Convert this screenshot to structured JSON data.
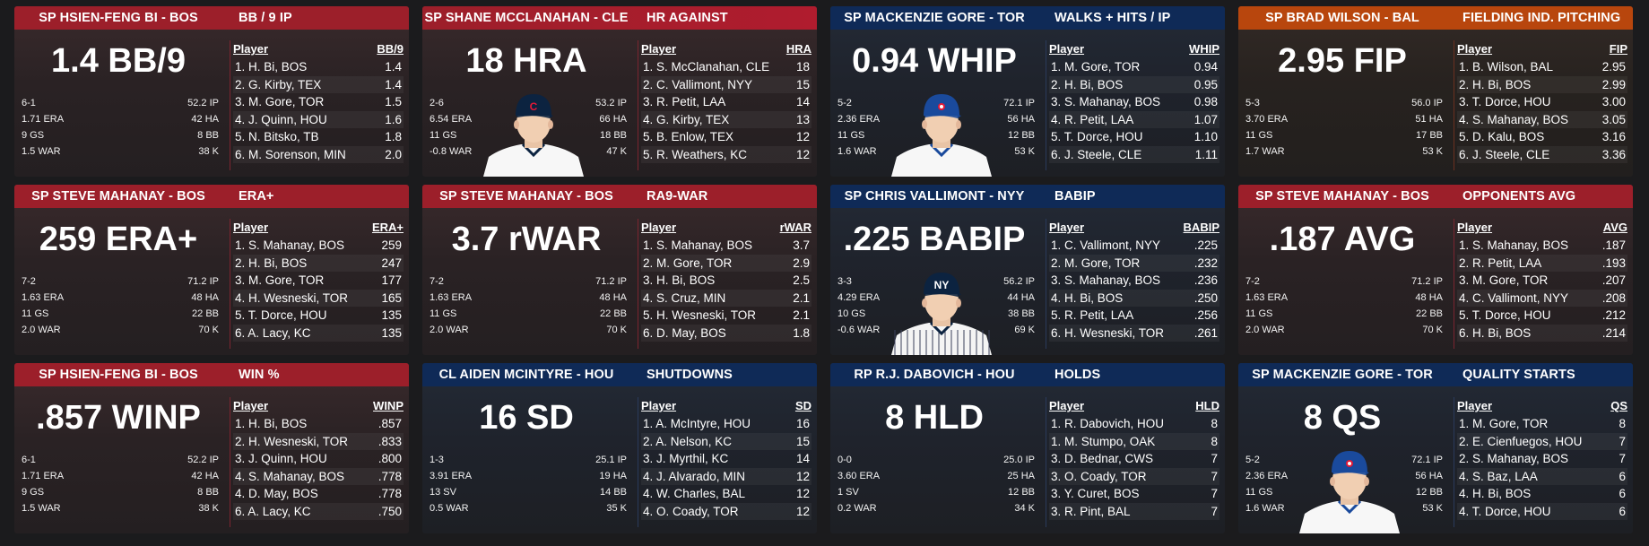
{
  "cards": [
    {
      "theme": "red",
      "pitcher": "SP HSIEN-FENG BI - BOS",
      "category": "BB / 9 IP",
      "big_stat": "1.4 BB/9",
      "avatar": false,
      "stats": [
        [
          "6-1",
          "52.2 IP"
        ],
        [
          "1.71 ERA",
          "42 HA"
        ],
        [
          "9 GS",
          "8 BB"
        ],
        [
          "1.5 WAR",
          "38 K"
        ]
      ],
      "leaderboard": {
        "player_header": "Player",
        "stat_header": "BB/9",
        "rows": [
          [
            "1. H. Bi, BOS",
            "1.4"
          ],
          [
            "2. G. Kirby, TEX",
            "1.4"
          ],
          [
            "3. M. Gore, TOR",
            "1.5"
          ],
          [
            "4. J. Quinn, HOU",
            "1.6"
          ],
          [
            "5. N. Bitsko, TB",
            "1.8"
          ],
          [
            "6. M. Sorenson, MIN",
            "2.0"
          ]
        ]
      }
    },
    {
      "theme": "red",
      "pitcher": "SP SHANE MCCLANAHAN - CLE",
      "category": "HR AGAINST",
      "big_stat": "18 HRA",
      "avatar": true,
      "cap_color": "#0c2340",
      "cap_letter": "C",
      "cap_letter_color": "#e31937",
      "stats": [
        [
          "2-6",
          "53.2 IP"
        ],
        [
          "6.54 ERA",
          "66 HA"
        ],
        [
          "11 GS",
          "18 BB"
        ],
        [
          "-0.8 WAR",
          "47 K"
        ]
      ],
      "leaderboard": {
        "player_header": "Player",
        "stat_header": "HRA",
        "rows": [
          [
            "1. S. McClanahan, CLE",
            "18"
          ],
          [
            "2. C. Vallimont, NYY",
            "15"
          ],
          [
            "3. R. Petit, LAA",
            "14"
          ],
          [
            "4. G. Kirby, TEX",
            "13"
          ],
          [
            "5. B. Enlow, TEX",
            "12"
          ],
          [
            "5. R. Weathers, KC",
            "12"
          ]
        ]
      }
    },
    {
      "theme": "blue",
      "pitcher": "SP MACKENZIE GORE - TOR",
      "category": "WALKS + HITS / IP",
      "big_stat": "0.94 WHIP",
      "avatar": true,
      "cap_color": "#1a4a9c",
      "cap_letter": "",
      "cap_letter_color": "#fff",
      "stats": [
        [
          "5-2",
          "72.1 IP"
        ],
        [
          "2.36 ERA",
          "56 HA"
        ],
        [
          "11 GS",
          "12 BB"
        ],
        [
          "1.6 WAR",
          "53 K"
        ]
      ],
      "leaderboard": {
        "player_header": "Player",
        "stat_header": "WHIP",
        "rows": [
          [
            "1. M. Gore, TOR",
            "0.94"
          ],
          [
            "2. H. Bi, BOS",
            "0.95"
          ],
          [
            "3. S. Mahanay, BOS",
            "0.98"
          ],
          [
            "4. R. Petit, LAA",
            "1.07"
          ],
          [
            "5. T. Dorce, HOU",
            "1.10"
          ],
          [
            "6. J. Steele, CLE",
            "1.11"
          ]
        ]
      }
    },
    {
      "theme": "orange",
      "pitcher": "SP BRAD WILSON - BAL",
      "category": "FIELDING IND. PITCHING",
      "big_stat": "2.95 FIP",
      "avatar": false,
      "stats": [
        [
          "5-3",
          "56.0 IP"
        ],
        [
          "3.70 ERA",
          "51 HA"
        ],
        [
          "11 GS",
          "17 BB"
        ],
        [
          "1.7 WAR",
          "53 K"
        ]
      ],
      "leaderboard": {
        "player_header": "Player",
        "stat_header": "FIP",
        "rows": [
          [
            "1. B. Wilson, BAL",
            "2.95"
          ],
          [
            "2. H. Bi, BOS",
            "2.99"
          ],
          [
            "3. T. Dorce, HOU",
            "3.00"
          ],
          [
            "4. S. Mahanay, BOS",
            "3.05"
          ],
          [
            "5. D. Kalu, BOS",
            "3.16"
          ],
          [
            "6. J. Steele, CLE",
            "3.36"
          ]
        ]
      }
    },
    {
      "theme": "red",
      "pitcher": "SP STEVE MAHANAY - BOS",
      "category": "ERA+",
      "big_stat": "259 ERA+",
      "avatar": false,
      "stats": [
        [
          "7-2",
          "71.2 IP"
        ],
        [
          "1.63 ERA",
          "48 HA"
        ],
        [
          "11 GS",
          "22 BB"
        ],
        [
          "2.0 WAR",
          "70 K"
        ]
      ],
      "leaderboard": {
        "player_header": "Player",
        "stat_header": "ERA+",
        "rows": [
          [
            "1. S. Mahanay, BOS",
            "259"
          ],
          [
            "2. H. Bi, BOS",
            "247"
          ],
          [
            "3. M. Gore, TOR",
            "177"
          ],
          [
            "4. H. Wesneski, TOR",
            "165"
          ],
          [
            "5. T. Dorce, HOU",
            "135"
          ],
          [
            "6. A. Lacy, KC",
            "135"
          ]
        ]
      }
    },
    {
      "theme": "red",
      "pitcher": "SP STEVE MAHANAY - BOS",
      "category": "RA9-WAR",
      "big_stat": "3.7 rWAR",
      "avatar": false,
      "stats": [
        [
          "7-2",
          "71.2 IP"
        ],
        [
          "1.63 ERA",
          "48 HA"
        ],
        [
          "11 GS",
          "22 BB"
        ],
        [
          "2.0 WAR",
          "70 K"
        ]
      ],
      "leaderboard": {
        "player_header": "Player",
        "stat_header": "rWAR",
        "rows": [
          [
            "1. S. Mahanay, BOS",
            "3.7"
          ],
          [
            "2. M. Gore, TOR",
            "2.9"
          ],
          [
            "3. H. Bi, BOS",
            "2.5"
          ],
          [
            "4. S. Cruz, MIN",
            "2.1"
          ],
          [
            "5. H. Wesneski, TOR",
            "2.1"
          ],
          [
            "6. D. May, BOS",
            "1.8"
          ]
        ]
      }
    },
    {
      "theme": "blue",
      "pitcher": "SP CHRIS VALLIMONT - NYY",
      "category": "BABIP",
      "big_stat": ".225 BABIP",
      "avatar": true,
      "cap_color": "#0c2340",
      "cap_letter": "NY",
      "cap_letter_color": "#fff",
      "pinstripe": true,
      "stats": [
        [
          "3-3",
          "56.2 IP"
        ],
        [
          "4.29 ERA",
          "44 HA"
        ],
        [
          "10 GS",
          "38 BB"
        ],
        [
          "-0.6 WAR",
          "69 K"
        ]
      ],
      "leaderboard": {
        "player_header": "Player",
        "stat_header": "BABIP",
        "rows": [
          [
            "1. C. Vallimont, NYY",
            ".225"
          ],
          [
            "2. M. Gore, TOR",
            ".232"
          ],
          [
            "3. S. Mahanay, BOS",
            ".236"
          ],
          [
            "4. H. Bi, BOS",
            ".250"
          ],
          [
            "5. R. Petit, LAA",
            ".256"
          ],
          [
            "6. H. Wesneski, TOR",
            ".261"
          ]
        ]
      }
    },
    {
      "theme": "red",
      "pitcher": "SP STEVE MAHANAY - BOS",
      "category": "OPPONENTS AVG",
      "big_stat": ".187 AVG",
      "avatar": false,
      "stats": [
        [
          "7-2",
          "71.2 IP"
        ],
        [
          "1.63 ERA",
          "48 HA"
        ],
        [
          "11 GS",
          "22 BB"
        ],
        [
          "2.0 WAR",
          "70 K"
        ]
      ],
      "leaderboard": {
        "player_header": "Player",
        "stat_header": "AVG",
        "rows": [
          [
            "1. S. Mahanay, BOS",
            ".187"
          ],
          [
            "2. R. Petit, LAA",
            ".193"
          ],
          [
            "3. M. Gore, TOR",
            ".207"
          ],
          [
            "4. C. Vallimont, NYY",
            ".208"
          ],
          [
            "5. T. Dorce, HOU",
            ".212"
          ],
          [
            "6. H. Bi, BOS",
            ".214"
          ]
        ]
      }
    },
    {
      "theme": "red",
      "pitcher": "SP HSIEN-FENG BI - BOS",
      "category": "WIN %",
      "big_stat": ".857 WINP",
      "avatar": false,
      "stats": [
        [
          "6-1",
          "52.2 IP"
        ],
        [
          "1.71 ERA",
          "42 HA"
        ],
        [
          "9 GS",
          "8 BB"
        ],
        [
          "1.5 WAR",
          "38 K"
        ]
      ],
      "leaderboard": {
        "player_header": "Player",
        "stat_header": "WINP",
        "rows": [
          [
            "1. H. Bi, BOS",
            ".857"
          ],
          [
            "2. H. Wesneski, TOR",
            ".833"
          ],
          [
            "3. J. Quinn, HOU",
            ".800"
          ],
          [
            "4. S. Mahanay, BOS",
            ".778"
          ],
          [
            "4. D. May, BOS",
            ".778"
          ],
          [
            "6. A. Lacy, KC",
            ".750"
          ]
        ]
      }
    },
    {
      "theme": "blue",
      "pitcher": "CL AIDEN MCINTYRE - HOU",
      "category": "SHUTDOWNS",
      "big_stat": "16 SD",
      "avatar": false,
      "stats": [
        [
          "1-3",
          "25.1 IP"
        ],
        [
          "3.91 ERA",
          "19 HA"
        ],
        [
          "13 SV",
          "14 BB"
        ],
        [
          "0.5 WAR",
          "35 K"
        ]
      ],
      "leaderboard": {
        "player_header": "Player",
        "stat_header": "SD",
        "rows": [
          [
            "1. A. McIntyre, HOU",
            "16"
          ],
          [
            "2. A. Nelson, KC",
            "15"
          ],
          [
            "3. J. Myrthil, KC",
            "14"
          ],
          [
            "4. J. Alvarado, MIN",
            "12"
          ],
          [
            "4. W. Charles, BAL",
            "12"
          ],
          [
            "4. O. Coady, TOR",
            "12"
          ]
        ]
      }
    },
    {
      "theme": "blue",
      "pitcher": "RP R.J. DABOVICH - HOU",
      "category": "HOLDS",
      "big_stat": "8 HLD",
      "avatar": false,
      "stats": [
        [
          "0-0",
          "25.0 IP"
        ],
        [
          "3.60 ERA",
          "25 HA"
        ],
        [
          "1 SV",
          "12 BB"
        ],
        [
          "0.2 WAR",
          "34 K"
        ]
      ],
      "leaderboard": {
        "player_header": "Player",
        "stat_header": "HLD",
        "rows": [
          [
            "1. R. Dabovich, HOU",
            "8"
          ],
          [
            "1. M. Stumpo, OAK",
            "8"
          ],
          [
            "3. D. Bednar, CWS",
            "7"
          ],
          [
            "3. O. Coady, TOR",
            "7"
          ],
          [
            "3. Y. Curet, BOS",
            "7"
          ],
          [
            "3. R. Pint, BAL",
            "7"
          ]
        ]
      }
    },
    {
      "theme": "blue",
      "pitcher": "SP MACKENZIE GORE - TOR",
      "category": "QUALITY STARTS",
      "big_stat": "8 QS",
      "avatar": true,
      "cap_color": "#1a4a9c",
      "cap_letter": "",
      "cap_letter_color": "#fff",
      "stats": [
        [
          "5-2",
          "72.1 IP"
        ],
        [
          "2.36 ERA",
          "56 HA"
        ],
        [
          "11 GS",
          "12 BB"
        ],
        [
          "1.6 WAR",
          "53 K"
        ]
      ],
      "leaderboard": {
        "player_header": "Player",
        "stat_header": "QS",
        "rows": [
          [
            "1. M. Gore, TOR",
            "8"
          ],
          [
            "2. E. Cienfuegos, HOU",
            "7"
          ],
          [
            "2. S. Mahanay, BOS",
            "7"
          ],
          [
            "4. S. Baz, LAA",
            "6"
          ],
          [
            "4. H. Bi, BOS",
            "6"
          ],
          [
            "4. T. Dorce, HOU",
            "6"
          ]
        ]
      }
    }
  ]
}
